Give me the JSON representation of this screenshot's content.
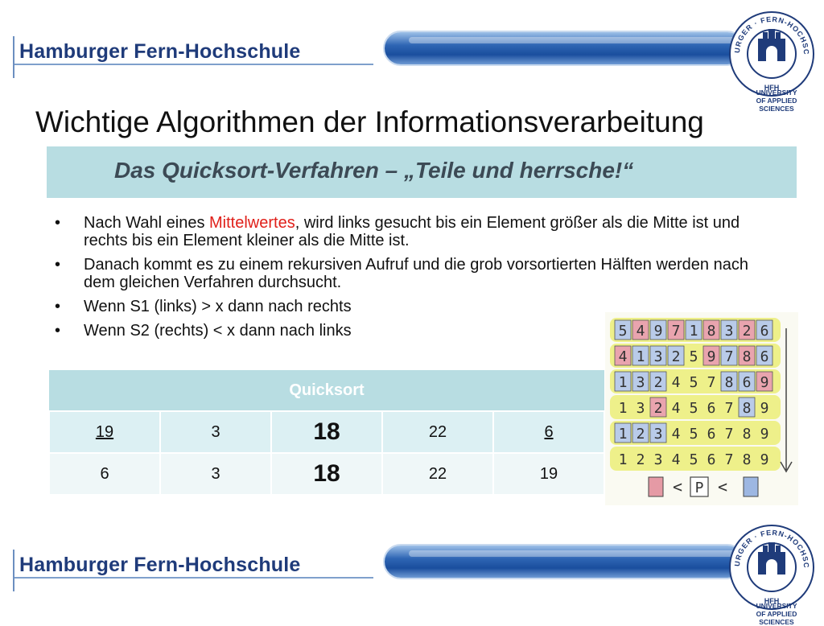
{
  "header": {
    "org_name": "Hamburger Fern-Hochschule",
    "seal_text": "HAMBURGER · FERN-HOCHSCHULE",
    "seal_abbrev": "HFH",
    "university_line1": "UNIVERSITY",
    "university_line2": "OF APPLIED SCIENCES"
  },
  "title": "Wichtige Algorithmen der Informationsverarbeitung",
  "subtitle": "Das Quicksort-Verfahren – „Teile und herrsche!“",
  "bullets": {
    "b1_pre": "Nach Wahl eines ",
    "b1_highlight": "Mittelwertes",
    "b1_post": ", wird links gesucht bis ein Element größer als die Mitte ist und rechts bis ein Element kleiner als die Mitte ist.",
    "b2": "Danach kommt es zu einem rekursiven Aufruf und die grob vorsortierten Hälften werden nach dem gleichen Verfahren durchsucht.",
    "b3": "Wenn S1 (links) > x  dann nach rechts",
    "b4": "Wenn S2 (rechts) < x dann nach links"
  },
  "table": {
    "header": "Quicksort",
    "rows": [
      [
        "19",
        "3",
        "18",
        "22",
        "6"
      ],
      [
        "6",
        "3",
        "18",
        "22",
        "19"
      ]
    ]
  },
  "sketch": {
    "rows": [
      "549718326",
      "413259786",
      "132457869",
      "132456789",
      "123456789",
      "123456789"
    ],
    "pivot_label": "P",
    "compare_symbol": "<"
  },
  "colors": {
    "accent_band": "#b8dde2",
    "org_blue": "#1f3b7a",
    "highlight_red": "#e0201a"
  }
}
